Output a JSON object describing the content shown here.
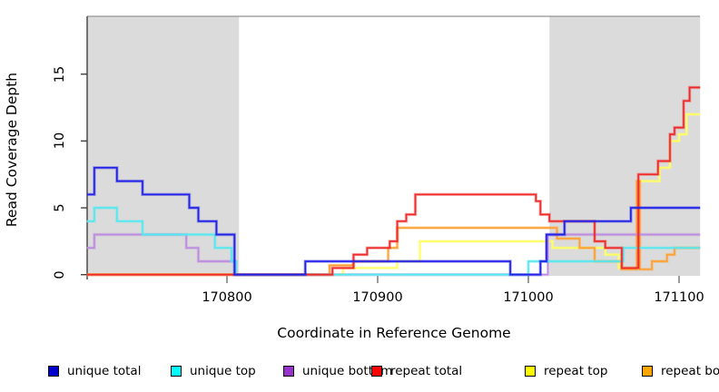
{
  "chart_data": {
    "type": "line",
    "subtype": "step",
    "title": "",
    "xlabel": "Coordinate in Reference Genome",
    "ylabel": "Read Coverage Depth",
    "xlim": [
      170707,
      171114
    ],
    "ylim": [
      0,
      19.4
    ],
    "x_ticks": [
      170800,
      170900,
      171000,
      171100
    ],
    "y_ticks": [
      0,
      5,
      10,
      15
    ],
    "grid": false,
    "legend_position": "bottom",
    "shaded_regions": [
      {
        "name": "left-repeat-region",
        "x0": 170707,
        "x1": 170808,
        "color": "#DBDBDB"
      },
      {
        "name": "right-repeat-region",
        "x0": 171014,
        "x1": 171114,
        "color": "#DBDBDB"
      }
    ],
    "series": [
      {
        "label": "unique total",
        "line_color": "#2323E8",
        "legend_color": "#0000CD",
        "z": 6,
        "points": [
          [
            170707,
            6
          ],
          [
            170712,
            8
          ],
          [
            170727,
            7
          ],
          [
            170744,
            6
          ],
          [
            170775,
            5
          ],
          [
            170781,
            4
          ],
          [
            170793,
            3
          ],
          [
            170805,
            0
          ],
          [
            170852,
            1
          ],
          [
            170988,
            0
          ],
          [
            171008,
            1
          ],
          [
            171012,
            3
          ],
          [
            171024,
            4
          ],
          [
            171068,
            5
          ],
          [
            171114,
            5
          ]
        ]
      },
      {
        "label": "unique top",
        "line_color": "#55E8EE",
        "legend_color": "#00FFFF",
        "z": 4,
        "points": [
          [
            170707,
            4
          ],
          [
            170712,
            5
          ],
          [
            170727,
            4
          ],
          [
            170744,
            3
          ],
          [
            170792,
            2
          ],
          [
            170803,
            1
          ],
          [
            170806,
            0
          ],
          [
            171000,
            1
          ],
          [
            171063,
            2
          ],
          [
            171114,
            2
          ]
        ]
      },
      {
        "label": "unique bottom",
        "line_color": "#BD8CDE",
        "legend_color": "#9932CC",
        "z": 3,
        "points": [
          [
            170707,
            2
          ],
          [
            170712,
            3
          ],
          [
            170773,
            2
          ],
          [
            170781,
            1
          ],
          [
            170806,
            0
          ],
          [
            171013,
            3
          ],
          [
            171114,
            3
          ]
        ]
      },
      {
        "label": "repeat total",
        "line_color": "#EE2C2C",
        "legend_color": "#FF0000",
        "z": 5,
        "points": [
          [
            170707,
            0
          ],
          [
            170870,
            0.5
          ],
          [
            170884,
            1.5
          ],
          [
            170893,
            2
          ],
          [
            170908,
            2.5
          ],
          [
            170913,
            4
          ],
          [
            170919,
            4.5
          ],
          [
            170925,
            6
          ],
          [
            171005,
            5.5
          ],
          [
            171008,
            4.5
          ],
          [
            171014,
            4
          ],
          [
            171044,
            2.5
          ],
          [
            171051,
            2
          ],
          [
            171062,
            0.5
          ],
          [
            171073,
            7.5
          ],
          [
            171086,
            8.5
          ],
          [
            171094,
            10.5
          ],
          [
            171097,
            11
          ],
          [
            171103,
            13
          ],
          [
            171107,
            14
          ],
          [
            171114,
            14
          ]
        ]
      },
      {
        "label": "repeat top",
        "line_color": "#FFFF63",
        "legend_color": "#FFFF00",
        "z": 1,
        "points": [
          [
            170707,
            0
          ],
          [
            170877,
            0.5
          ],
          [
            170913,
            1
          ],
          [
            170928,
            2.5
          ],
          [
            171016,
            2
          ],
          [
            171051,
            1.5
          ],
          [
            171060,
            0.5
          ],
          [
            171073,
            7
          ],
          [
            171087,
            8
          ],
          [
            171094,
            10
          ],
          [
            171100,
            10.5
          ],
          [
            171105,
            12
          ],
          [
            171114,
            12
          ]
        ]
      },
      {
        "label": "repeat bottom",
        "line_color": "#FFA033",
        "legend_color": "#FFA500",
        "z": 2,
        "points": [
          [
            170707,
            0
          ],
          [
            170868,
            0.7
          ],
          [
            170884,
            1
          ],
          [
            170907,
            2
          ],
          [
            170913,
            3.5
          ],
          [
            171019,
            2.7
          ],
          [
            171034,
            2
          ],
          [
            171044,
            1
          ],
          [
            171062,
            0.4
          ],
          [
            171072,
            7
          ],
          [
            171074,
            0.4
          ],
          [
            171082,
            1
          ],
          [
            171092,
            1.5
          ],
          [
            171097,
            2
          ],
          [
            171114,
            2
          ]
        ]
      }
    ]
  }
}
